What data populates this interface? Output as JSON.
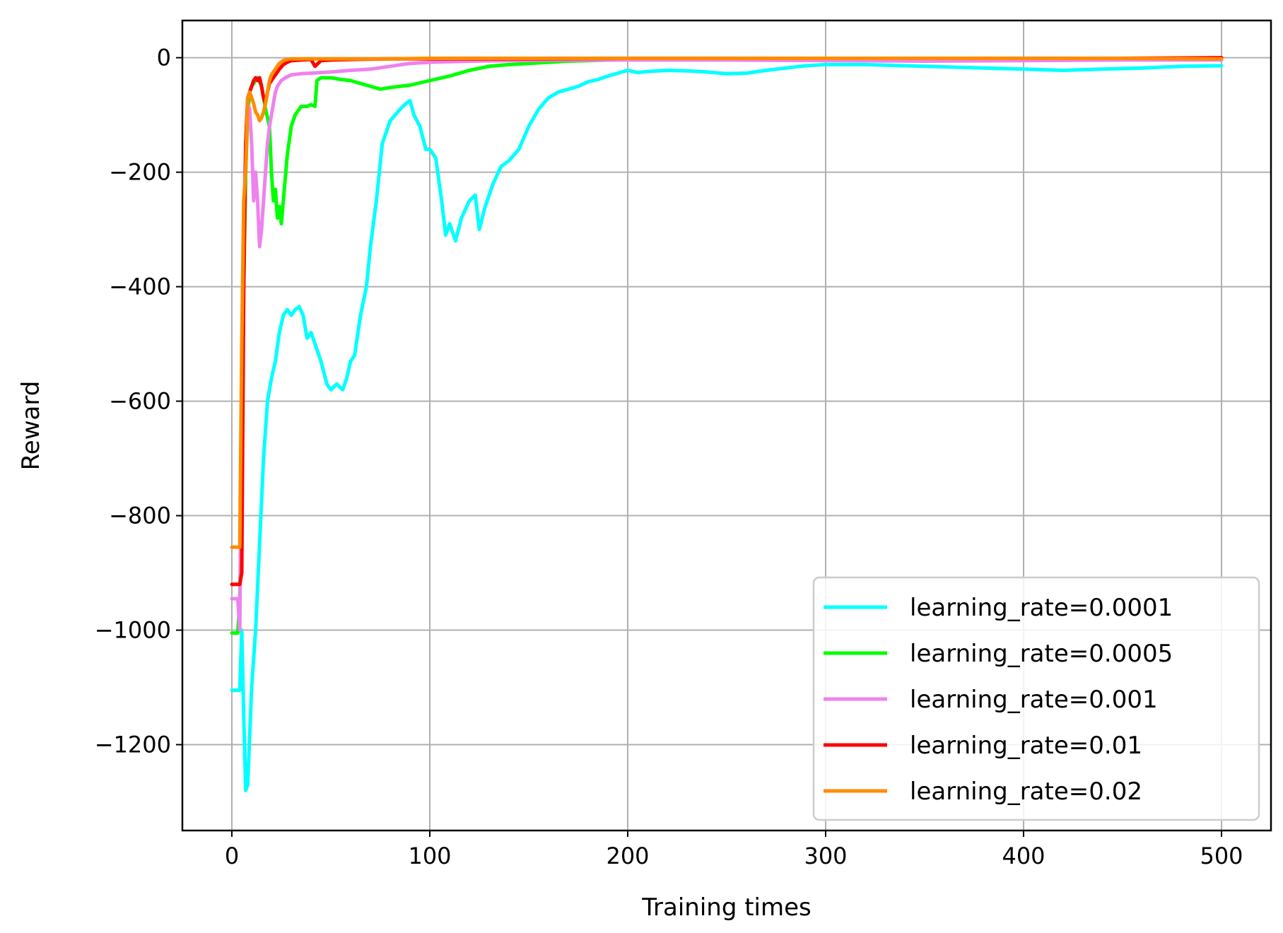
{
  "chart_data": {
    "type": "line",
    "title": "",
    "xlabel": "Training times",
    "ylabel": "Reward",
    "xlim": [
      -25,
      525
    ],
    "ylim": [
      -1350,
      65
    ],
    "xticks": [
      0,
      100,
      200,
      300,
      400,
      500
    ],
    "yticks": [
      0,
      -200,
      -400,
      -600,
      -800,
      -1000,
      -1200
    ],
    "xtick_labels": [
      "0",
      "100",
      "200",
      "300",
      "400",
      "500"
    ],
    "ytick_labels": [
      "0",
      "−200",
      "−400",
      "−600",
      "−800",
      "−1000",
      "−1200"
    ],
    "grid": true,
    "legend_position": "lower-right",
    "series": [
      {
        "name": "learning_rate=0.0001",
        "color": "#00ffff",
        "x": [
          0,
          4,
          5,
          6,
          7,
          8,
          10,
          12,
          14,
          16,
          18,
          20,
          22,
          24,
          26,
          28,
          30,
          32,
          34,
          36,
          38,
          40,
          42,
          45,
          48,
          50,
          53,
          56,
          58,
          60,
          62,
          65,
          68,
          70,
          73,
          76,
          80,
          85,
          88,
          90,
          92,
          95,
          98,
          100,
          103,
          106,
          108,
          110,
          113,
          116,
          120,
          123,
          125,
          128,
          132,
          136,
          140,
          145,
          150,
          155,
          160,
          165,
          170,
          175,
          180,
          185,
          190,
          195,
          200,
          205,
          210,
          220,
          230,
          240,
          250,
          260,
          270,
          280,
          290,
          300,
          320,
          340,
          360,
          380,
          400,
          420,
          440,
          460,
          480,
          500
        ],
        "y": [
          -1105,
          -1105,
          -1000,
          -1150,
          -1280,
          -1270,
          -1100,
          -1000,
          -850,
          -700,
          -600,
          -560,
          -530,
          -480,
          -450,
          -440,
          -450,
          -440,
          -435,
          -450,
          -490,
          -480,
          -500,
          -530,
          -570,
          -580,
          -570,
          -580,
          -560,
          -530,
          -520,
          -450,
          -400,
          -330,
          -250,
          -150,
          -110,
          -90,
          -80,
          -75,
          -100,
          -120,
          -160,
          -160,
          -175,
          -250,
          -310,
          -290,
          -320,
          -280,
          -250,
          -240,
          -300,
          -260,
          -220,
          -190,
          -180,
          -160,
          -120,
          -90,
          -70,
          -60,
          -55,
          -50,
          -42,
          -38,
          -32,
          -27,
          -22,
          -26,
          -24,
          -22,
          -23,
          -25,
          -28,
          -27,
          -22,
          -18,
          -14,
          -12,
          -12,
          -14,
          -16,
          -18,
          -20,
          -22,
          -20,
          -18,
          -15,
          -14
        ]
      },
      {
        "name": "learning_rate=0.0005",
        "color": "#00ff00",
        "x": [
          0,
          3,
          4,
          5,
          6,
          7,
          8,
          9,
          10,
          11,
          12,
          13,
          15,
          17,
          19,
          20,
          21,
          22,
          23,
          24,
          25,
          26,
          28,
          30,
          32,
          35,
          38,
          40,
          42,
          43,
          45,
          50,
          55,
          60,
          65,
          70,
          75,
          80,
          90,
          100,
          110,
          120,
          130,
          140,
          150,
          160,
          170,
          180,
          190,
          200,
          220,
          250,
          300,
          350,
          400,
          450,
          500
        ],
        "y": [
          -1005,
          -1005,
          -950,
          -700,
          -400,
          -200,
          -100,
          -60,
          -50,
          -45,
          -40,
          -35,
          -50,
          -90,
          -120,
          -200,
          -250,
          -230,
          -280,
          -260,
          -290,
          -250,
          -170,
          -120,
          -100,
          -85,
          -85,
          -82,
          -85,
          -40,
          -35,
          -35,
          -38,
          -40,
          -45,
          -50,
          -55,
          -52,
          -48,
          -40,
          -32,
          -22,
          -15,
          -12,
          -10,
          -8,
          -6,
          -5,
          -4,
          -3,
          -3,
          -2,
          -3,
          -2,
          -2,
          -2,
          -2
        ]
      },
      {
        "name": "learning_rate=0.001",
        "color": "#ee82ee",
        "x": [
          0,
          3,
          4,
          5,
          6,
          7,
          8,
          9,
          10,
          11,
          12,
          13,
          14,
          15,
          16,
          17,
          18,
          19,
          20,
          21,
          22,
          23,
          25,
          27,
          30,
          35,
          40,
          50,
          60,
          70,
          80,
          90,
          100,
          120,
          140,
          160,
          200,
          250,
          300,
          350,
          400,
          450,
          500
        ],
        "y": [
          -945,
          -945,
          -1000,
          -600,
          -300,
          -150,
          -80,
          -90,
          -150,
          -250,
          -200,
          -250,
          -330,
          -300,
          -250,
          -200,
          -150,
          -120,
          -100,
          -80,
          -60,
          -50,
          -40,
          -35,
          -30,
          -28,
          -27,
          -25,
          -22,
          -20,
          -15,
          -10,
          -8,
          -6,
          -5,
          -4,
          -4,
          -4,
          -5,
          -6,
          -5,
          -4,
          -4
        ]
      },
      {
        "name": "learning_rate=0.01",
        "color": "#ff0000",
        "x": [
          0,
          4,
          5,
          6,
          7,
          8,
          9,
          10,
          11,
          12,
          13,
          14,
          15,
          16,
          17,
          18,
          19,
          20,
          22,
          24,
          26,
          28,
          30,
          35,
          40,
          42,
          45,
          50,
          60,
          80,
          100,
          150,
          200,
          250,
          300,
          350,
          400,
          450,
          500
        ],
        "y": [
          -920,
          -920,
          -900,
          -400,
          -150,
          -70,
          -60,
          -50,
          -40,
          -35,
          -40,
          -35,
          -50,
          -70,
          -80,
          -60,
          -45,
          -40,
          -30,
          -20,
          -12,
          -8,
          -5,
          -4,
          -3,
          -15,
          -5,
          -4,
          -3,
          -2,
          -2,
          -2,
          -1,
          -1,
          -1,
          -1,
          -1,
          -1,
          0
        ]
      },
      {
        "name": "learning_rate=0.02",
        "color": "#ff8c00",
        "x": [
          0,
          4,
          5,
          6,
          7,
          8,
          9,
          10,
          11,
          12,
          13,
          14,
          15,
          16,
          17,
          18,
          19,
          20,
          22,
          24,
          26,
          28,
          30,
          35,
          40,
          50,
          60,
          80,
          100,
          150,
          200,
          250,
          300,
          350,
          400,
          450,
          500
        ],
        "y": [
          -855,
          -855,
          -500,
          -250,
          -200,
          -70,
          -60,
          -70,
          -80,
          -95,
          -100,
          -110,
          -105,
          -95,
          -80,
          -60,
          -40,
          -30,
          -20,
          -10,
          -5,
          -3,
          -2,
          -2,
          -2,
          -2,
          -2,
          -2,
          -1,
          -1,
          -1,
          -1,
          -1,
          -1,
          -1,
          -1,
          -2
        ]
      }
    ]
  }
}
